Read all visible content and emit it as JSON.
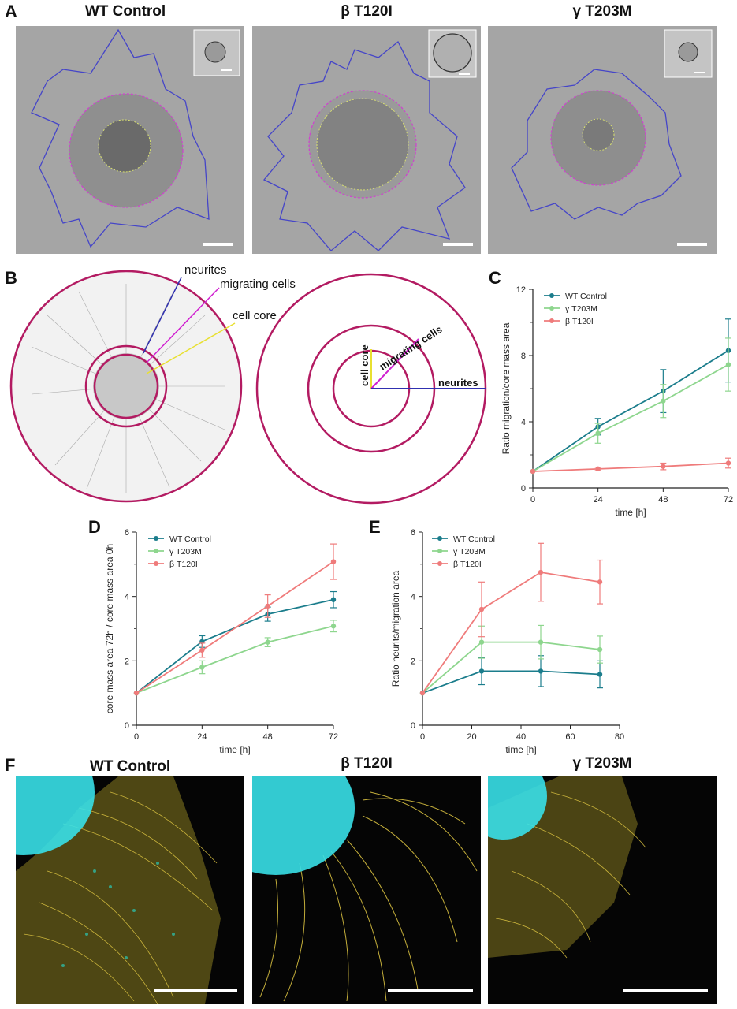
{
  "panelA": {
    "letter": "A",
    "titles": [
      "WT Control",
      "β T120I",
      "γ T203M"
    ],
    "colors": {
      "neurites": "#4040c8",
      "migration": "#d040d0",
      "core": "#d8e070"
    }
  },
  "panelB": {
    "letter": "B",
    "labels": {
      "neurites": "neurites",
      "migrating": "migrating cells",
      "core": "cell core"
    },
    "schematic": {
      "core": "cell core",
      "migrating": "migrating cells",
      "neurites": "neurites"
    },
    "colors": {
      "ring": "#b31b62",
      "neurites": "#3030b0",
      "migrating": "#d020d0",
      "core": "#e8e030"
    }
  },
  "panelF": {
    "letter": "F",
    "titles": [
      "WT Control",
      "β T120I",
      "γ T203M"
    ],
    "colors": {
      "nuclei": "#38e0e8",
      "neurites": "#d8c040"
    }
  },
  "chart_data": [
    {
      "id": "C",
      "type": "line",
      "xlabel": "time [h]",
      "ylabel": "Ratio migration/core mass area",
      "x": [
        0,
        24,
        48,
        72
      ],
      "xticks": [
        0,
        24,
        48,
        72
      ],
      "yticks": [
        0,
        4,
        8,
        12
      ],
      "xlim": [
        0,
        72
      ],
      "ylim": [
        0,
        12
      ],
      "legend": "top-left",
      "series": [
        {
          "name": "WT Control",
          "color": "#1b7d8c",
          "values": [
            1.0,
            3.7,
            5.85,
            8.3
          ],
          "err": [
            0,
            0.5,
            1.3,
            1.9
          ]
        },
        {
          "name": "γ T203M",
          "color": "#8ed68e",
          "values": [
            1.0,
            3.3,
            5.25,
            7.45
          ],
          "err": [
            0,
            0.6,
            1.0,
            1.6
          ]
        },
        {
          "name": "β T120I",
          "color": "#ef7b7b",
          "values": [
            1.0,
            1.15,
            1.3,
            1.5
          ],
          "err": [
            0,
            0.1,
            0.2,
            0.3
          ]
        }
      ]
    },
    {
      "id": "D",
      "type": "line",
      "xlabel": "time [h]",
      "ylabel": "core mass area 72h / core mass area 0h",
      "x": [
        0,
        24,
        48,
        72
      ],
      "xticks": [
        0,
        24,
        48,
        72
      ],
      "yticks": [
        0,
        2,
        4,
        6
      ],
      "xlim": [
        0,
        72
      ],
      "ylim": [
        0,
        6
      ],
      "legend": "top-left",
      "series": [
        {
          "name": "WT Control",
          "color": "#1b7d8c",
          "values": [
            1.0,
            2.6,
            3.45,
            3.9
          ],
          "err": [
            0,
            0.18,
            0.22,
            0.25
          ]
        },
        {
          "name": "γ T203M",
          "color": "#8ed68e",
          "values": [
            1.0,
            1.8,
            2.58,
            3.08
          ],
          "err": [
            0,
            0.2,
            0.14,
            0.18
          ]
        },
        {
          "name": "β T120I",
          "color": "#ef7b7b",
          "values": [
            1.0,
            2.33,
            3.7,
            5.08
          ],
          "err": [
            0,
            0.22,
            0.35,
            0.55
          ]
        }
      ]
    },
    {
      "id": "E",
      "type": "line",
      "xlabel": "time [h]",
      "ylabel": "Ratio neurits/migration area",
      "x": [
        0,
        24,
        48,
        72
      ],
      "xticks": [
        0,
        20,
        40,
        60,
        80
      ],
      "yticks": [
        0,
        2,
        4,
        6
      ],
      "xlim": [
        0,
        80
      ],
      "ylim": [
        0,
        6
      ],
      "legend": "top-left",
      "series": [
        {
          "name": "WT Control",
          "color": "#1b7d8c",
          "values": [
            1.0,
            1.68,
            1.68,
            1.58
          ],
          "err": [
            0,
            0.42,
            0.48,
            0.42
          ]
        },
        {
          "name": "γ T203M",
          "color": "#8ed68e",
          "values": [
            1.0,
            2.58,
            2.58,
            2.35
          ],
          "err": [
            0,
            0.5,
            0.52,
            0.42
          ]
        },
        {
          "name": "β T120I",
          "color": "#ef7b7b",
          "values": [
            1.0,
            3.6,
            4.75,
            4.45
          ],
          "err": [
            0,
            0.85,
            0.9,
            0.68
          ]
        }
      ]
    }
  ]
}
